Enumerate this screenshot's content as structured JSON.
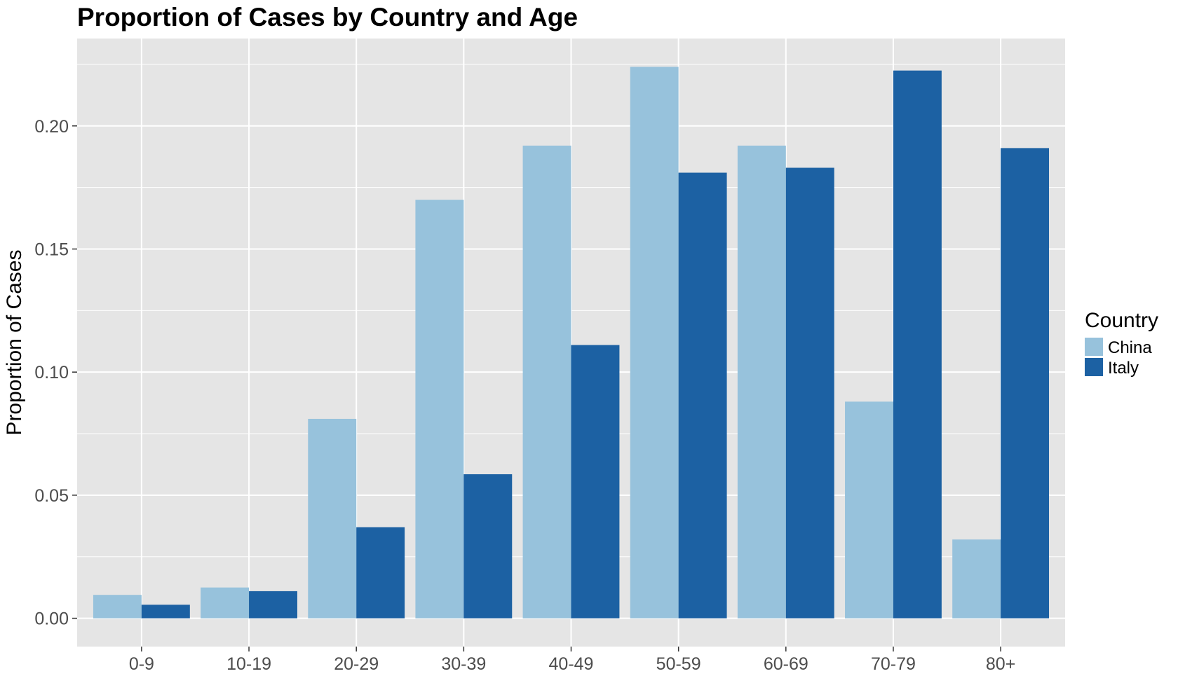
{
  "chart_data": {
    "type": "bar",
    "title": "Proportion of Cases by Country and Age",
    "xlabel": "",
    "ylabel": "Proportion of Cases",
    "categories": [
      "0-9",
      "10-19",
      "20-29",
      "30-39",
      "40-49",
      "50-59",
      "60-69",
      "70-79",
      "80+"
    ],
    "series": [
      {
        "name": "China",
        "color": "#97c2dc",
        "values": [
          0.0095,
          0.0125,
          0.081,
          0.17,
          0.192,
          0.224,
          0.192,
          0.088,
          0.032
        ]
      },
      {
        "name": "Italy",
        "color": "#1c61a3",
        "values": [
          0.0055,
          0.011,
          0.037,
          0.0585,
          0.111,
          0.181,
          0.183,
          0.2225,
          0.191
        ]
      }
    ],
    "ylim": [
      -0.0115,
      0.2355
    ],
    "yticks": [
      0.0,
      0.05,
      0.1,
      0.15,
      0.2
    ],
    "ytick_labels": [
      "0.00",
      "0.05",
      "0.10",
      "0.15",
      "0.20"
    ],
    "grid": true,
    "panel_background": "#e5e5e5",
    "grid_color": "#ffffff",
    "legend": {
      "title": "Country",
      "position": "right"
    }
  }
}
